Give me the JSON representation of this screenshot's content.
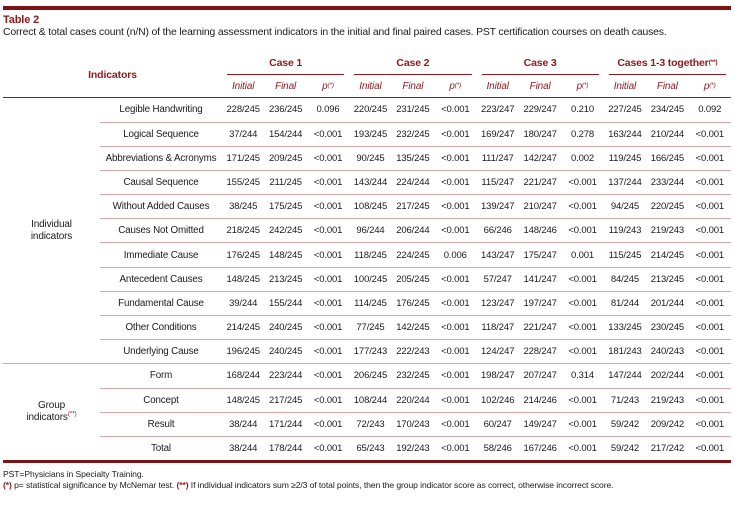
{
  "title": "Table 2",
  "caption": "Correct & total cases count (n/N) of the learning assessment indicators in the initial and final paired cases. PST certification courses on death causes.",
  "colors": {
    "accent_text": "#8e1a1d",
    "bar_dark": "#7c1416",
    "separator_light": "#d7a6a6",
    "body_text": "#1b1b1b",
    "background": "#ffffff"
  },
  "table": {
    "indicators_header": "Indicators",
    "case_groups": [
      {
        "label": "Case 1",
        "sup": ""
      },
      {
        "label": "Case 2",
        "sup": ""
      },
      {
        "label": "Case 3",
        "sup": ""
      },
      {
        "label": "Cases 1-3 together",
        "sup": "(**)"
      }
    ],
    "sub_headers": [
      {
        "label": "Initial",
        "sup": ""
      },
      {
        "label": "Final",
        "sup": ""
      },
      {
        "label": "p",
        "sup": "(*)"
      }
    ],
    "sections": [
      {
        "group_label": "Individual indicators",
        "group_sup": "",
        "rows": [
          {
            "indicator": "Legible Handwriting",
            "values": [
              "228/245",
              "236/245",
              "0.096",
              "220/245",
              "231/245",
              "<0.001",
              "223/247",
              "229/247",
              "0.210",
              "227/245",
              "234/245",
              "0.092"
            ]
          },
          {
            "indicator": "Logical Sequence",
            "values": [
              "37/244",
              "154/244",
              "<0.001",
              "193/245",
              "232/245",
              "<0.001",
              "169/247",
              "180/247",
              "0.278",
              "163/244",
              "210/244",
              "<0.001"
            ]
          },
          {
            "indicator": "Abbreviations & Acronyms",
            "values": [
              "171/245",
              "209/245",
              "<0.001",
              "90/245",
              "135/245",
              "<0.001",
              "111/247",
              "142/247",
              "0.002",
              "119/245",
              "166/245",
              "<0.001"
            ]
          },
          {
            "indicator": "Causal Sequence",
            "values": [
              "155/245",
              "211/245",
              "<0.001",
              "143/244",
              "224/244",
              "<0.001",
              "115/247",
              "221/247",
              "<0.001",
              "137/244",
              "233/244",
              "<0.001"
            ]
          },
          {
            "indicator": "Without Added Causes",
            "values": [
              "38/245",
              "175/245",
              "<0.001",
              "108/245",
              "217/245",
              "<0.001",
              "139/247",
              "210/247",
              "<0.001",
              "94/245",
              "220/245",
              "<0.001"
            ]
          },
          {
            "indicator": "Causes Not Omitted",
            "values": [
              "218/245",
              "242/245",
              "<0.001",
              "96/244",
              "206/244",
              "<0.001",
              "66/246",
              "148/246",
              "<0.001",
              "119/243",
              "219/243",
              "<0.001"
            ]
          },
          {
            "indicator": "Immediate Cause",
            "values": [
              "176/245",
              "148/245",
              "<0.001",
              "118/245",
              "224/245",
              "0.006",
              "143/247",
              "175/247",
              "0.001",
              "115/245",
              "214/245",
              "<0.001"
            ]
          },
          {
            "indicator": "Antecedent Causes",
            "values": [
              "148/245",
              "213/245",
              "<0.001",
              "100/245",
              "205/245",
              "<0.001",
              "57/247",
              "141/247",
              "<0.001",
              "84/245",
              "213/245",
              "<0.001"
            ]
          },
          {
            "indicator": "Fundamental Cause",
            "values": [
              "39/244",
              "155/244",
              "<0.001",
              "114/245",
              "176/245",
              "<0.001",
              "123/247",
              "197/247",
              "<0.001",
              "81/244",
              "201/244",
              "<0.001"
            ]
          },
          {
            "indicator": "Other Conditions",
            "values": [
              "214/245",
              "240/245",
              "<0.001",
              "77/245",
              "142/245",
              "<0.001",
              "118/247",
              "221/247",
              "<0.001",
              "133/245",
              "230/245",
              "<0.001"
            ]
          },
          {
            "indicator": "Underlying Cause",
            "values": [
              "196/245",
              "240/245",
              "<0.001",
              "177/243",
              "222/243",
              "<0.001",
              "124/247",
              "228/247",
              "<0.001",
              "181/243",
              "240/243",
              "<0.001"
            ]
          }
        ]
      },
      {
        "group_label": "Group indicators",
        "group_sup": "(**)",
        "rows": [
          {
            "indicator": "Form",
            "values": [
              "168/244",
              "223/244",
              "<0.001",
              "206/245",
              "232/245",
              "<0.001",
              "198/247",
              "207/247",
              "0.314",
              "147/244",
              "202/244",
              "<0.001"
            ]
          },
          {
            "indicator": "Concept",
            "values": [
              "148/245",
              "217/245",
              "<0.001",
              "108/244",
              "220/244",
              "<0.001",
              "102/246",
              "214/246",
              "<0.001",
              "71/243",
              "219/243",
              "<0.001"
            ]
          },
          {
            "indicator": "Result",
            "values": [
              "38/244",
              "171/244",
              "<0.001",
              "72/243",
              "170/243",
              "<0.001",
              "60/247",
              "149/247",
              "<0.001",
              "59/242",
              "209/242",
              "<0.001"
            ]
          },
          {
            "indicator": "Total",
            "values": [
              "38/244",
              "178/244",
              "<0.001",
              "65/243",
              "192/243",
              "<0.001",
              "58/246",
              "167/246",
              "<0.001",
              "59/242",
              "217/242",
              "<0.001"
            ]
          }
        ]
      }
    ]
  },
  "footnotes": {
    "line1": "PST=Physicians in Specialty Training.",
    "line2_segments": [
      {
        "text": "(*)",
        "marker": true
      },
      {
        "text": " p= statistical significance by McNemar test. ",
        "marker": false
      },
      {
        "text": "(**)",
        "marker": true
      },
      {
        "text": " If individual indicators sum ≥2/3 of total points, then the group indicator score as correct, otherwise incorrect score.",
        "marker": false
      }
    ]
  }
}
